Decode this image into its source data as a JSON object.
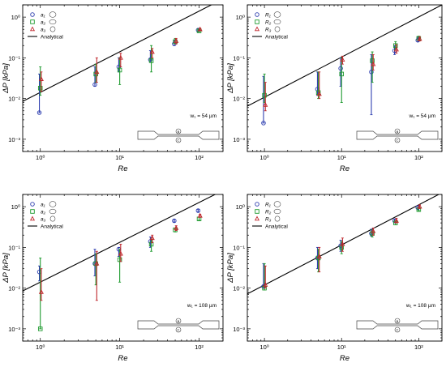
{
  "x_axis_label": "Re",
  "y_axis_label": "ΔP [kPa]",
  "colors": {
    "series_1": "#2f3fb0",
    "series_2": "#1e9a2e",
    "series_3": "#c0272d",
    "analytical": "#000000"
  },
  "chart_data": [
    {
      "type": "scatter",
      "panel": "top-left",
      "xscale": "log",
      "yscale": "log",
      "xlim": [
        0.6,
        200
      ],
      "ylim": [
        0.0005,
        2
      ],
      "xlabel": "Re",
      "ylabel": "ΔP [kPa]",
      "x_ticks": [
        "10⁰",
        "10¹",
        "10²"
      ],
      "y_ticks": [
        "10⁻³",
        "10⁻²",
        "10⁻¹",
        "10⁰"
      ],
      "legend_position": "top-left",
      "annotation": "w₁ = 54 µm",
      "inset_labels": [
        "B",
        "C"
      ],
      "series": [
        {
          "name": "a₁",
          "marker": "circle",
          "color": "#2f3fb0",
          "x": [
            1,
            5,
            10,
            25,
            50,
            100
          ],
          "y": [
            0.0045,
            0.022,
            0.06,
            0.09,
            0.22,
            0.48
          ],
          "err_low": [
            0.0045,
            0.02,
            0.045,
            0.08,
            0.2,
            0.45
          ],
          "err_high": [
            0.04,
            0.06,
            0.1,
            0.15,
            0.27,
            0.52
          ]
        },
        {
          "name": "a₂",
          "marker": "square",
          "color": "#1e9a2e",
          "x": [
            1,
            5,
            10,
            25,
            50,
            100
          ],
          "y": [
            0.018,
            0.04,
            0.05,
            0.085,
            0.25,
            0.46
          ],
          "err_low": [
            0.012,
            0.025,
            0.022,
            0.045,
            0.22,
            0.44
          ],
          "err_high": [
            0.06,
            0.07,
            0.1,
            0.2,
            0.3,
            0.5
          ]
        },
        {
          "name": "a₃",
          "marker": "triangle",
          "color": "#c0272d",
          "x": [
            1,
            5,
            10,
            25,
            50,
            100
          ],
          "y": [
            0.03,
            0.045,
            0.1,
            0.14,
            0.26,
            0.5
          ],
          "err_low": [
            0.015,
            0.025,
            0.06,
            0.1,
            0.22,
            0.47
          ],
          "err_high": [
            0.045,
            0.1,
            0.13,
            0.17,
            0.3,
            0.53
          ]
        },
        {
          "name": "Analytical",
          "marker": "line",
          "color": "#000000",
          "x": [
            0.6,
            200
          ],
          "y": [
            0.0085,
            2.8
          ]
        }
      ]
    },
    {
      "type": "scatter",
      "panel": "top-right",
      "xscale": "log",
      "yscale": "log",
      "xlim": [
        0.6,
        200
      ],
      "ylim": [
        0.0005,
        2
      ],
      "xlabel": "Re",
      "ylabel": "ΔP [kPa]",
      "x_ticks": [
        "10⁰",
        "10¹",
        "10²"
      ],
      "y_ticks": [
        "10⁻³",
        "10⁻²",
        "10⁻¹",
        "10⁰"
      ],
      "legend_position": "top-left",
      "annotation": "w₁ = 54 µm",
      "inset_labels": [
        "B",
        "C"
      ],
      "series": [
        {
          "name": "R₁",
          "marker": "circle",
          "color": "#2f3fb0",
          "x": [
            1,
            5,
            10,
            25,
            50,
            100
          ],
          "y": [
            0.0025,
            0.017,
            0.055,
            0.045,
            0.15,
            0.27
          ],
          "err_low": [
            0.0025,
            0.012,
            0.02,
            0.004,
            0.12,
            0.25
          ],
          "err_high": [
            0.035,
            0.045,
            0.1,
            0.12,
            0.2,
            0.32
          ]
        },
        {
          "name": "R₂",
          "marker": "square",
          "color": "#1e9a2e",
          "x": [
            1,
            5,
            10,
            25,
            50,
            100
          ],
          "y": [
            0.012,
            0.014,
            0.04,
            0.085,
            0.2,
            0.3
          ],
          "err_low": [
            0.008,
            0.01,
            0.008,
            0.025,
            0.16,
            0.27
          ],
          "err_high": [
            0.04,
            0.045,
            0.1,
            0.14,
            0.25,
            0.34
          ]
        },
        {
          "name": "R₃",
          "marker": "triangle",
          "color": "#c0272d",
          "x": [
            1,
            5,
            10,
            25,
            50,
            100
          ],
          "y": [
            0.007,
            0.013,
            0.09,
            0.07,
            0.16,
            0.29
          ],
          "err_low": [
            0.005,
            0.01,
            0.07,
            0.05,
            0.13,
            0.26
          ],
          "err_high": [
            0.025,
            0.045,
            0.11,
            0.12,
            0.21,
            0.33
          ]
        },
        {
          "name": "Analytical",
          "marker": "line",
          "color": "#000000",
          "x": [
            0.6,
            200
          ],
          "y": [
            0.0065,
            2.0
          ]
        }
      ]
    },
    {
      "type": "scatter",
      "panel": "bottom-left",
      "xscale": "log",
      "yscale": "log",
      "xlim": [
        0.6,
        200
      ],
      "ylim": [
        0.0005,
        2
      ],
      "xlabel": "Re",
      "ylabel": "ΔP [kPa]",
      "x_ticks": [
        "10⁰",
        "10¹",
        "10²"
      ],
      "y_ticks": [
        "10⁻³",
        "10⁻²",
        "10⁻¹",
        "10⁰"
      ],
      "legend_position": "top-left",
      "annotation": "w₁ = 108 µm",
      "inset_labels": [
        "B",
        "C"
      ],
      "series": [
        {
          "name": "a₁",
          "marker": "circle",
          "color": "#2f3fb0",
          "x": [
            1,
            5,
            10,
            25,
            50,
            100
          ],
          "y": [
            0.025,
            0.04,
            0.09,
            0.14,
            0.45,
            0.8
          ],
          "err_low": [
            0.015,
            0.02,
            0.06,
            0.1,
            0.42,
            0.75
          ],
          "err_high": [
            0.035,
            0.09,
            0.1,
            0.18,
            0.48,
            0.85
          ]
        },
        {
          "name": "a₂",
          "marker": "square",
          "color": "#1e9a2e",
          "x": [
            1,
            5,
            10,
            25,
            50,
            100
          ],
          "y": [
            0.001,
            0.04,
            0.05,
            0.12,
            0.27,
            0.5
          ],
          "err_low": [
            0.001,
            0.012,
            0.014,
            0.08,
            0.24,
            0.46
          ],
          "err_high": [
            0.055,
            0.07,
            0.09,
            0.16,
            0.3,
            0.55
          ]
        },
        {
          "name": "a₃",
          "marker": "triangle",
          "color": "#c0272d",
          "x": [
            1,
            5,
            10,
            25,
            50,
            100
          ],
          "y": [
            0.008,
            0.04,
            0.07,
            0.17,
            0.3,
            0.6
          ],
          "err_low": [
            0.005,
            0.005,
            0.045,
            0.13,
            0.26,
            0.55
          ],
          "err_high": [
            0.03,
            0.08,
            0.12,
            0.2,
            0.34,
            0.65
          ]
        },
        {
          "name": "Analytical",
          "marker": "line",
          "color": "#000000",
          "x": [
            0.6,
            200
          ],
          "y": [
            0.0085,
            2.5
          ]
        }
      ]
    },
    {
      "type": "scatter",
      "panel": "bottom-right",
      "xscale": "log",
      "yscale": "log",
      "xlim": [
        0.6,
        200
      ],
      "ylim": [
        0.0005,
        2
      ],
      "xlabel": "Re",
      "ylabel": "ΔP [kPa]",
      "x_ticks": [
        "10⁰",
        "10¹",
        "10²"
      ],
      "y_ticks": [
        "10⁻³",
        "10⁻²",
        "10⁻¹",
        "10⁰"
      ],
      "legend_position": "top-left",
      "annotation": "w₁ = 108 µm",
      "inset_labels": [
        "B",
        "C"
      ],
      "series": [
        {
          "name": "R₁",
          "marker": "circle",
          "color": "#2f3fb0",
          "x": [
            1,
            5,
            10,
            25,
            50,
            100
          ],
          "y": [
            0.011,
            0.055,
            0.11,
            0.22,
            0.45,
            0.95
          ],
          "err_low": [
            0.01,
            0.03,
            0.08,
            0.19,
            0.4,
            0.85
          ],
          "err_high": [
            0.04,
            0.1,
            0.15,
            0.28,
            0.5,
            1.05
          ]
        },
        {
          "name": "R₂",
          "marker": "square",
          "color": "#1e9a2e",
          "x": [
            1,
            5,
            10,
            25,
            50,
            100
          ],
          "y": [
            0.01,
            0.055,
            0.1,
            0.22,
            0.4,
            0.85
          ],
          "err_low": [
            0.009,
            0.025,
            0.07,
            0.18,
            0.36,
            0.8
          ],
          "err_high": [
            0.04,
            0.09,
            0.14,
            0.27,
            0.45,
            0.95
          ]
        },
        {
          "name": "R₃",
          "marker": "triangle",
          "color": "#c0272d",
          "x": [
            1,
            5,
            10,
            25,
            50,
            100
          ],
          "y": [
            0.012,
            0.06,
            0.12,
            0.25,
            0.45,
            1.0
          ],
          "err_low": [
            0.01,
            0.025,
            0.08,
            0.2,
            0.4,
            0.9
          ],
          "err_high": [
            0.035,
            0.1,
            0.17,
            0.3,
            0.52,
            1.1
          ]
        },
        {
          "name": "Analytical",
          "marker": "line",
          "color": "#000000",
          "x": [
            0.6,
            200
          ],
          "y": [
            0.0072,
            2.2
          ]
        }
      ]
    }
  ]
}
